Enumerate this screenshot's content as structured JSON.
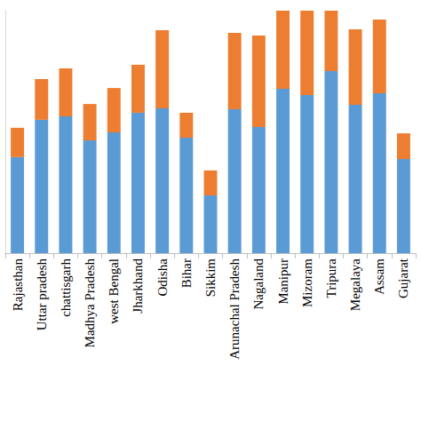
{
  "chart_data": {
    "type": "bar",
    "stacked": true,
    "grid": false,
    "tick_labels": "x",
    "categories": [
      "Rajasthan",
      "Uttar pradesh",
      "chattisgarh",
      "Madhya Pradesh",
      "west Bengal",
      "Jharkhand",
      "Odisha",
      "Bihar",
      "Sikkim",
      "Arunachal Pradesh",
      "Nagaland",
      "Manipur",
      "Mizoram",
      "Tripura",
      "Megalaya",
      "Assam",
      "Gujarat"
    ],
    "ylim": [
      0,
      100
    ],
    "series": [
      {
        "color": "#5b9bd5",
        "values": [
          39.6,
          55.0,
          56.4,
          46.5,
          49.8,
          57.9,
          59.7,
          47.6,
          23.8,
          59.3,
          52.0,
          67.8,
          65.2,
          75.1,
          61.2,
          65.9,
          38.8
        ]
      },
      {
        "color": "#ed7d31",
        "values": [
          12.1,
          16.8,
          19.8,
          15.0,
          18.3,
          19.8,
          32.2,
          10.3,
          10.3,
          31.5,
          37.7,
          32.2,
          34.8,
          24.9,
          31.1,
          30.4,
          10.6
        ]
      }
    ]
  }
}
